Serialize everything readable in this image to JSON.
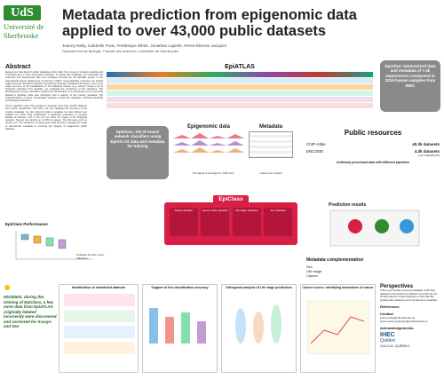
{
  "header": {
    "logo_text": "UdS",
    "university_line1": "Université de",
    "university_line2": "Sherbrooke",
    "title_line1": "Metadata prediction from epigenomic data",
    "title_line2": "applied to over 43,000 public datasets",
    "authors": "Joanny Raby, Gabrielle Frosi, Frédérique White, Jonathan Laperle, Pierre-Étienne Jacques",
    "affiliation": "Département de Biologie, Faculté des sciences, Université de Sherbrooke"
  },
  "abstract": {
    "heading": "Abstract",
    "para1": "Epigenomic data found in public databases often suffer from issues of curated metadata and incompleteness in their associated metadata. To tackle this challenge, we harnessed the extensive and harmonized data and metadata provided by the EpiAtlas project of the International Human Epigenome Consortium (IHEC). Using EpiAtlas resources we trained highly accurate classifiers capable of predicting important metadata information such as the assay and sex, or the classification of the biological sample (e.g. cancer). Using a set of biological replicates from EpiAtlas, we evaluated the predictions of the classifiers. The development of these classifiers enabled the identification of a substantial set of incorrectly labeled in EpiAtlas, while also identifying that a majority of the missing metadata. The characterization of these misclassified samples reveals the classifiers combined flexibility and biological relevance.",
    "para2": "These classifiers were then applied to annotate more than 43,000 datasets from public repositories. This effort not only validated the accuracy of the original metadata, but also offered original metadata, but also offered new insights into these data. Additionally, a significant proportion of samples labeled as disease, and in this set, we notice the shape of the biological samples. Sample can identify up to 90% of assays. The first lead, such as results, etc. The robustness of epigenomic data and also revealing the value of harmonized metadata to ensuring the integrity of epigenomic public datasets."
  },
  "epiatlas": {
    "title": "EpiATLAS",
    "callout": "EpiAtlas: Harmonized data and metadata of 7.4k experiments conducted in 2216 human samples from IHEC"
  },
  "overview": {
    "epigenomic_data": "Epigenomic data",
    "metadata": "Metadata",
    "callout": "EpiClass: Set of neural network classifiers using EpiATLAS data and metadata for training",
    "signal_note": "The signal is averaged in 10kb bins",
    "labels_note": "Labels are curated",
    "epiclass_banner": "EpiClass",
    "classifiers": [
      {
        "name": "Assay classifier"
      },
      {
        "name": "Cancer state classifier"
      },
      {
        "name": "Life stage classifier"
      },
      {
        "name": "Sex classifier"
      }
    ]
  },
  "public_resources": {
    "heading": "Public resources",
    "rows": [
      {
        "source": "ChIP-Atlas",
        "count": "40.2k datasets"
      },
      {
        "source": "ENCODE",
        "count": "4.3k datasets",
        "note": "(not in EpiATLAS)"
      }
    ],
    "note": "Uniformly processed data with different pipelines",
    "prediction_results": "Prediction results",
    "complementation_title": "Metadata complementation",
    "complementation_items": [
      "Sex",
      "Life stage",
      "Cancer"
    ]
  },
  "performance": {
    "heading": "EpiClass Performance",
    "xlabels": [
      "Assay",
      "Sex",
      "Cancer",
      "Life stage"
    ],
    "legend": [
      "Stratified 10-fold Cross-Validation"
    ]
  },
  "note_box": {
    "text": "Mislabels: during the training of EpiClass, a few more data from EpiATLAS originally labeled incorrectly were discovered and corrected for Assays and Sex"
  },
  "panels": {
    "p1_title": "Identification of mislabeled datasets",
    "p2_title": "Support of Sex classification accuracy",
    "p3_title": "Orthogonal analysis of Life stage predictions",
    "p4_title": "Cancer scores: identifying biomarkers of cancer"
  },
  "perspectives": {
    "heading": "Perspectives",
    "text": "Train new models using all available ChIP-Seq datasets and publish an efficient tool that can be incorporated in usual pipelines to help identify problematic datasets and complement metadata.",
    "refs_heading": "References",
    "contact_heading": "Contact",
    "contact_lines": [
      "joanny.raby@usherbrooke.ca",
      "pierre-etienne.jacques@usherbrooke.ca"
    ],
    "ack_heading": "Acknowledgements"
  },
  "logos": {
    "ihec": "IHEC",
    "quebec": "Québec",
    "calcul": "CALCUL QUÉBEC"
  },
  "colors": {
    "title_green": "#2e8b2e",
    "epiclass_red": "#d81f45",
    "callout_gray": "#8a8a8a",
    "note_green": "#1d5e1d"
  }
}
